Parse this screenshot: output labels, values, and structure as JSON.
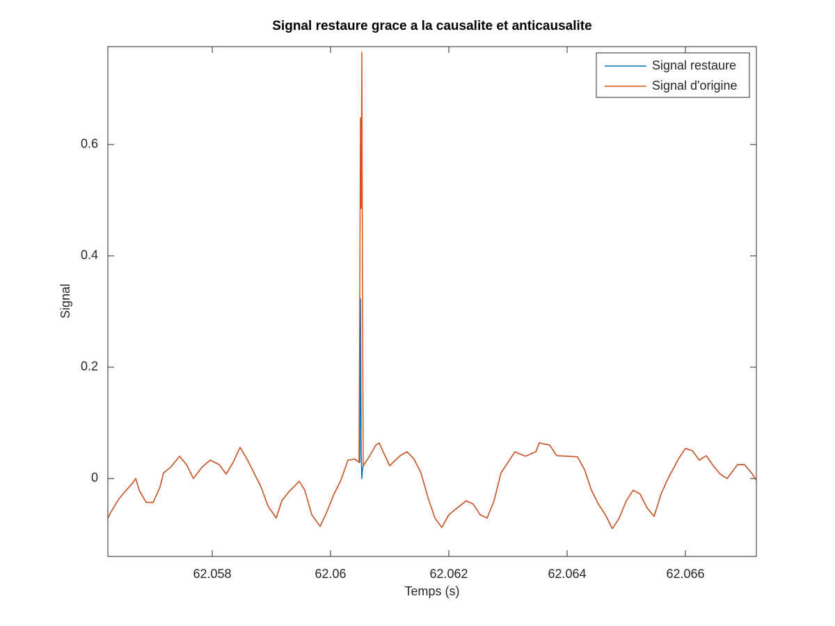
{
  "chart_data": {
    "type": "line",
    "title": "Signal restaure grace a la causalite et anticausalite",
    "xlabel": "Temps (s)",
    "ylabel": "Signal",
    "x": [
      62.056235,
      62.056294,
      62.056412,
      62.056529,
      62.056647,
      62.056706,
      62.056765,
      62.056882,
      62.057,
      62.057118,
      62.057176,
      62.057294,
      62.057447,
      62.057565,
      62.057682,
      62.057824,
      62.057965,
      62.058118,
      62.058235,
      62.058353,
      62.058471,
      62.058588,
      62.058706,
      62.058824,
      62.058941,
      62.059082,
      62.059176,
      62.059294,
      62.059471,
      62.059565,
      62.059682,
      62.059824,
      62.059941,
      62.060059,
      62.060176,
      62.060294,
      62.060412,
      62.060482,
      62.060494,
      62.060506,
      62.060518,
      62.060529,
      62.060541,
      62.060553,
      62.060647,
      62.060765,
      62.060824,
      62.060882,
      62.061,
      62.061118,
      62.061176,
      62.061294,
      62.061412,
      62.061529,
      62.061647,
      62.061765,
      62.061882,
      62.062,
      62.062176,
      62.062294,
      62.062412,
      62.062529,
      62.062647,
      62.062765,
      62.062882,
      62.063,
      62.063118,
      62.063294,
      62.063471,
      62.063529,
      62.063706,
      62.063824,
      62.064176,
      62.064294,
      62.064412,
      62.064529,
      62.064647,
      62.064765,
      62.064882,
      62.065,
      62.065118,
      62.065235,
      62.065353,
      62.065471,
      62.065588,
      62.065706,
      62.065882,
      62.066,
      62.066118,
      62.066235,
      62.066353,
      62.066471,
      62.066588,
      62.066706,
      62.066882,
      62.067,
      62.067118,
      62.0672
    ],
    "series": [
      {
        "name": "Signal restaure",
        "color": "#0072bd",
        "values": [
          -0.071,
          -0.059,
          -0.038,
          -0.023,
          -0.009,
          0,
          -0.021,
          -0.043,
          -0.043,
          -0.015,
          0.01,
          0.02,
          0.04,
          0.025,
          0,
          0.02,
          0.033,
          0.025,
          0.008,
          0.029,
          0.056,
          0.035,
          0.01,
          -0.015,
          -0.049,
          -0.071,
          -0.04,
          -0.024,
          -0.005,
          -0.021,
          -0.065,
          -0.086,
          -0.059,
          -0.028,
          -0.003,
          0.033,
          0.035,
          0.029,
          0.029,
          0.323,
          0.048,
          0,
          0.016,
          0.023,
          0.038,
          0.06,
          0.064,
          0.05,
          0.023,
          0.035,
          0.041,
          0.048,
          0.035,
          0.01,
          -0.034,
          -0.071,
          -0.088,
          -0.065,
          -0.05,
          -0.04,
          -0.046,
          -0.065,
          -0.071,
          -0.04,
          0.01,
          0.029,
          0.048,
          0.04,
          0.048,
          0.064,
          0.06,
          0.041,
          0.039,
          0.016,
          -0.021,
          -0.046,
          -0.065,
          -0.09,
          -0.071,
          -0.04,
          -0.021,
          -0.028,
          -0.053,
          -0.068,
          -0.028,
          0,
          0.035,
          0.054,
          0.05,
          0.033,
          0.041,
          0.023,
          0.008,
          0,
          0.025,
          0.025,
          0.01,
          -0.003
        ]
      },
      {
        "name": "Signal d'origine",
        "color": "#d95319",
        "values": [
          -0.071,
          -0.059,
          -0.038,
          -0.023,
          -0.009,
          0,
          -0.021,
          -0.043,
          -0.043,
          -0.015,
          0.01,
          0.02,
          0.04,
          0.025,
          0,
          0.02,
          0.033,
          0.025,
          0.008,
          0.029,
          0.056,
          0.035,
          0.01,
          -0.015,
          -0.049,
          -0.071,
          -0.04,
          -0.024,
          -0.005,
          -0.021,
          -0.065,
          -0.086,
          -0.059,
          -0.028,
          -0.003,
          0.033,
          0.035,
          0.029,
          0.323,
          0.648,
          0.485,
          0.766,
          0.323,
          0.023,
          0.038,
          0.06,
          0.064,
          0.05,
          0.023,
          0.035,
          0.041,
          0.048,
          0.035,
          0.01,
          -0.034,
          -0.071,
          -0.088,
          -0.065,
          -0.05,
          -0.04,
          -0.046,
          -0.065,
          -0.071,
          -0.04,
          0.01,
          0.029,
          0.048,
          0.04,
          0.048,
          0.064,
          0.06,
          0.041,
          0.039,
          0.016,
          -0.021,
          -0.046,
          -0.065,
          -0.09,
          -0.071,
          -0.04,
          -0.021,
          -0.028,
          -0.053,
          -0.068,
          -0.028,
          0,
          0.035,
          0.054,
          0.05,
          0.033,
          0.041,
          0.023,
          0.008,
          0,
          0.025,
          0.025,
          0.01,
          -0.003
        ]
      }
    ],
    "xlim": [
      62.056235,
      62.0672
    ],
    "xticks": [
      62.058,
      62.06,
      62.062,
      62.064,
      62.066
    ],
    "ylim": [
      -0.14,
      0.776
    ],
    "yticks": [
      0,
      0.2,
      0.4,
      0.6
    ],
    "legend": "top-right"
  }
}
